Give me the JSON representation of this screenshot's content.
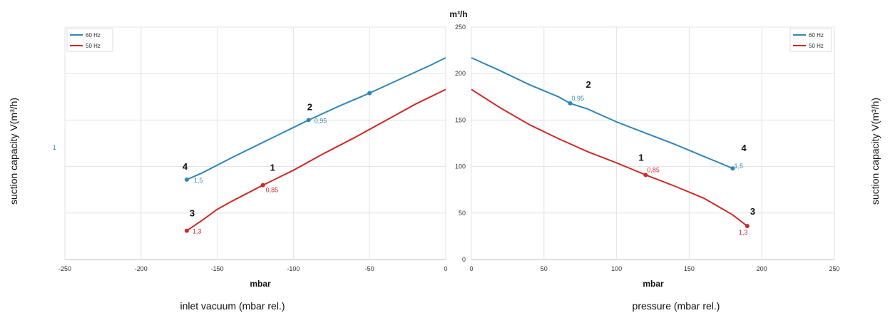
{
  "chart_data": [
    {
      "type": "line",
      "xlabel": "mbar",
      "caption": "inlet vacuum (mbar rel.)",
      "ylabel": "suction capacity V(m³/h)",
      "xlim": [
        -250,
        0
      ],
      "ylim": [
        0,
        250
      ],
      "xticks": [
        "-250",
        "-200",
        "-150",
        "-100",
        "-50",
        "0"
      ],
      "grid": true,
      "legend_position": "top-left",
      "stray_label": "1",
      "series": [
        {
          "name": "60 Hz",
          "color": "#2e86b8",
          "x": [
            -170,
            -160,
            -140,
            -120,
            -100,
            -90,
            -70,
            -50,
            -30,
            -10,
            0
          ],
          "y": [
            86,
            93,
            110,
            126,
            142,
            150,
            165,
            179,
            194,
            209,
            217
          ],
          "markers": [
            {
              "x": -170,
              "y": 86,
              "point": "4",
              "value": "1,5"
            },
            {
              "x": -90,
              "y": 150,
              "point": "2",
              "value": "0,95"
            },
            {
              "x": -50,
              "y": 179,
              "point": "",
              "value": ""
            }
          ]
        },
        {
          "name": "50 Hz",
          "color": "#cc2a2a",
          "x": [
            -170,
            -160,
            -150,
            -140,
            -120,
            -100,
            -80,
            -60,
            -40,
            -20,
            0
          ],
          "y": [
            31,
            42,
            54,
            63,
            80,
            96,
            114,
            131,
            149,
            167,
            183
          ],
          "markers": [
            {
              "x": -170,
              "y": 31,
              "point": "3",
              "value": "1,3"
            },
            {
              "x": -120,
              "y": 80,
              "point": "1",
              "value": "0,85"
            }
          ]
        }
      ]
    },
    {
      "type": "line",
      "title": "m³/h",
      "xlabel": "mbar",
      "caption": "pressure (mbar rel.)",
      "ylabel": "suction capacity V(m³/h)",
      "xlim": [
        0,
        250
      ],
      "ylim": [
        0,
        250
      ],
      "xticks": [
        "0",
        "50",
        "100",
        "150",
        "200",
        "250"
      ],
      "yticks": [
        "0",
        "50",
        "100",
        "150",
        "200",
        "250"
      ],
      "grid": true,
      "legend_position": "top-right",
      "series": [
        {
          "name": "60 Hz",
          "color": "#2e86b8",
          "x": [
            0,
            20,
            40,
            60,
            68,
            80,
            100,
            120,
            140,
            160,
            180
          ],
          "y": [
            217,
            203,
            188,
            175,
            168,
            162,
            148,
            136,
            124,
            111,
            98
          ],
          "markers": [
            {
              "x": 68,
              "y": 168,
              "point": "2",
              "value": "0,95"
            },
            {
              "x": 180,
              "y": 98,
              "point": "4",
              "value": "1,5"
            }
          ]
        },
        {
          "name": "50 Hz",
          "color": "#cc2a2a",
          "x": [
            0,
            20,
            40,
            60,
            80,
            100,
            120,
            140,
            160,
            180,
            190
          ],
          "y": [
            183,
            163,
            145,
            130,
            116,
            104,
            91,
            79,
            66,
            48,
            36
          ],
          "markers": [
            {
              "x": 120,
              "y": 91,
              "point": "1",
              "value": "0,85"
            },
            {
              "x": 190,
              "y": 36,
              "point": "3",
              "value": "1,3"
            }
          ]
        }
      ]
    }
  ]
}
